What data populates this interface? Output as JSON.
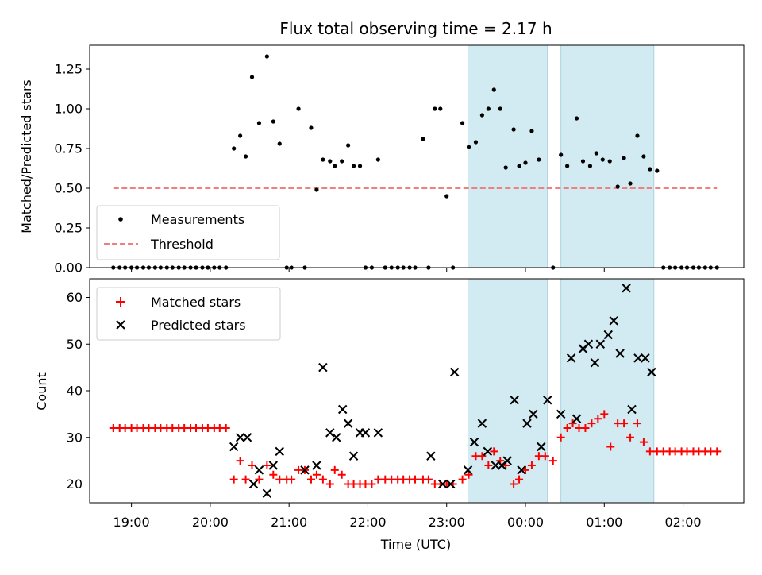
{
  "chart_data": [
    {
      "type": "scatter",
      "title": "Flux total observing time = 2.17 h",
      "xlabel": "",
      "ylabel": "Matched/Predicted stars",
      "ylim": [
        0.0,
        1.4
      ],
      "yticks": [
        "0.00",
        "0.25",
        "0.50",
        "0.75",
        "1.00",
        "1.25"
      ],
      "yticks_values": [
        0.0,
        0.25,
        0.5,
        0.75,
        1.0,
        1.25
      ],
      "xlim_hours": [
        18.47,
        26.77
      ],
      "legend": {
        "placement": "lower-left",
        "entries": [
          "Measurements",
          "Threshold"
        ]
      },
      "series": [
        {
          "name": "Measurements",
          "points": [
            [
              18.77,
              0
            ],
            [
              18.85,
              0
            ],
            [
              18.92,
              0
            ],
            [
              19.0,
              0
            ],
            [
              19.07,
              0
            ],
            [
              19.15,
              0
            ],
            [
              19.22,
              0
            ],
            [
              19.3,
              0
            ],
            [
              19.37,
              0
            ],
            [
              19.45,
              0
            ],
            [
              19.52,
              0
            ],
            [
              19.6,
              0
            ],
            [
              19.67,
              0
            ],
            [
              19.75,
              0
            ],
            [
              19.82,
              0
            ],
            [
              19.9,
              0
            ],
            [
              19.97,
              0
            ],
            [
              20.05,
              0
            ],
            [
              20.12,
              0
            ],
            [
              20.2,
              0
            ],
            [
              20.3,
              0.75
            ],
            [
              20.38,
              0.83
            ],
            [
              20.45,
              0.7
            ],
            [
              20.53,
              1.2
            ],
            [
              20.62,
              0.91
            ],
            [
              20.72,
              1.33
            ],
            [
              20.8,
              0.92
            ],
            [
              20.88,
              0.78
            ],
            [
              20.97,
              0
            ],
            [
              21.03,
              0
            ],
            [
              21.12,
              1.0
            ],
            [
              21.2,
              0
            ],
            [
              21.28,
              0.88
            ],
            [
              21.35,
              0.49
            ],
            [
              21.43,
              0.68
            ],
            [
              21.52,
              0.67
            ],
            [
              21.58,
              0.64
            ],
            [
              21.67,
              0.67
            ],
            [
              21.75,
              0.77
            ],
            [
              21.82,
              0.64
            ],
            [
              21.9,
              0.64
            ],
            [
              21.97,
              0
            ],
            [
              22.05,
              0
            ],
            [
              22.13,
              0.68
            ],
            [
              22.22,
              0
            ],
            [
              22.3,
              0
            ],
            [
              22.38,
              0
            ],
            [
              22.45,
              0
            ],
            [
              22.53,
              0
            ],
            [
              22.6,
              0
            ],
            [
              22.7,
              0.81
            ],
            [
              22.77,
              0
            ],
            [
              22.85,
              1.0
            ],
            [
              22.92,
              1.0
            ],
            [
              23.0,
              0.45
            ],
            [
              23.08,
              0
            ],
            [
              23.2,
              0.91
            ],
            [
              23.28,
              0.76
            ],
            [
              23.37,
              0.79
            ],
            [
              23.45,
              0.96
            ],
            [
              23.53,
              1.0
            ],
            [
              23.6,
              1.12
            ],
            [
              23.68,
              1.0
            ],
            [
              23.75,
              0.63
            ],
            [
              23.85,
              0.87
            ],
            [
              23.92,
              0.64
            ],
            [
              24.0,
              0.66
            ],
            [
              24.08,
              0.86
            ],
            [
              24.17,
              0.68
            ],
            [
              24.35,
              0
            ],
            [
              24.45,
              0.71
            ],
            [
              24.53,
              0.64
            ],
            [
              24.65,
              0.94
            ],
            [
              24.73,
              0.67
            ],
            [
              24.82,
              0.64
            ],
            [
              24.9,
              0.72
            ],
            [
              24.98,
              0.68
            ],
            [
              25.07,
              0.67
            ],
            [
              25.17,
              0.51
            ],
            [
              25.25,
              0.69
            ],
            [
              25.33,
              0.53
            ],
            [
              25.42,
              0.83
            ],
            [
              25.5,
              0.7
            ],
            [
              25.58,
              0.62
            ],
            [
              25.67,
              0.61
            ],
            [
              25.75,
              0
            ],
            [
              25.83,
              0
            ],
            [
              25.9,
              0
            ],
            [
              25.98,
              0
            ],
            [
              26.05,
              0
            ],
            [
              26.13,
              0
            ],
            [
              26.2,
              0
            ],
            [
              26.28,
              0
            ],
            [
              26.35,
              0
            ],
            [
              26.43,
              0
            ]
          ]
        },
        {
          "name": "Threshold",
          "type": "line",
          "x_hours": [
            18.77,
            26.43
          ],
          "y": [
            0.5,
            0.5
          ]
        }
      ],
      "shaded_intervals_hours": [
        [
          23.27,
          24.28
        ],
        [
          24.45,
          25.63
        ]
      ]
    },
    {
      "type": "scatter",
      "title": "",
      "xlabel": "Time (UTC)",
      "ylabel": "Count",
      "ylim": [
        16,
        64
      ],
      "yticks": [
        "20",
        "30",
        "40",
        "50",
        "60"
      ],
      "yticks_values": [
        20,
        30,
        40,
        50,
        60
      ],
      "xlim_hours": [
        18.47,
        26.77
      ],
      "xtick_values_hours": [
        19,
        20,
        21,
        22,
        23,
        24,
        25,
        26
      ],
      "xticks": [
        "19:00",
        "20:00",
        "21:00",
        "22:00",
        "23:00",
        "00:00",
        "01:00",
        "02:00"
      ],
      "legend": {
        "placement": "top-left",
        "entries": [
          "Matched stars",
          "Predicted stars"
        ]
      },
      "series": [
        {
          "name": "Matched stars",
          "points": [
            [
              18.77,
              32
            ],
            [
              18.85,
              32
            ],
            [
              18.92,
              32
            ],
            [
              19.0,
              32
            ],
            [
              19.07,
              32
            ],
            [
              19.15,
              32
            ],
            [
              19.22,
              32
            ],
            [
              19.3,
              32
            ],
            [
              19.37,
              32
            ],
            [
              19.45,
              32
            ],
            [
              19.52,
              32
            ],
            [
              19.6,
              32
            ],
            [
              19.67,
              32
            ],
            [
              19.75,
              32
            ],
            [
              19.82,
              32
            ],
            [
              19.9,
              32
            ],
            [
              19.97,
              32
            ],
            [
              20.05,
              32
            ],
            [
              20.12,
              32
            ],
            [
              20.2,
              32
            ],
            [
              20.3,
              21
            ],
            [
              20.38,
              25
            ],
            [
              20.45,
              21
            ],
            [
              20.53,
              24
            ],
            [
              20.62,
              21
            ],
            [
              20.72,
              24
            ],
            [
              20.8,
              22
            ],
            [
              20.88,
              21
            ],
            [
              20.97,
              21
            ],
            [
              21.03,
              21
            ],
            [
              21.12,
              23
            ],
            [
              21.2,
              23
            ],
            [
              21.28,
              21
            ],
            [
              21.35,
              22
            ],
            [
              21.43,
              21
            ],
            [
              21.52,
              20
            ],
            [
              21.58,
              23
            ],
            [
              21.67,
              22
            ],
            [
              21.75,
              20
            ],
            [
              21.82,
              20
            ],
            [
              21.9,
              20
            ],
            [
              21.97,
              20
            ],
            [
              22.05,
              20
            ],
            [
              22.13,
              21
            ],
            [
              22.22,
              21
            ],
            [
              22.3,
              21
            ],
            [
              22.38,
              21
            ],
            [
              22.45,
              21
            ],
            [
              22.53,
              21
            ],
            [
              22.6,
              21
            ],
            [
              22.7,
              21
            ],
            [
              22.77,
              21
            ],
            [
              22.85,
              20
            ],
            [
              22.92,
              20
            ],
            [
              23.0,
              20
            ],
            [
              23.08,
              20
            ],
            [
              23.2,
              21
            ],
            [
              23.28,
              22
            ],
            [
              23.37,
              26
            ],
            [
              23.45,
              26
            ],
            [
              23.53,
              24
            ],
            [
              23.6,
              27
            ],
            [
              23.68,
              25
            ],
            [
              23.75,
              24
            ],
            [
              23.85,
              20
            ],
            [
              23.92,
              21
            ],
            [
              24.0,
              23
            ],
            [
              24.08,
              24
            ],
            [
              24.17,
              26
            ],
            [
              24.25,
              26
            ],
            [
              24.35,
              25
            ],
            [
              24.45,
              30
            ],
            [
              24.53,
              32
            ],
            [
              24.6,
              33
            ],
            [
              24.68,
              32
            ],
            [
              24.76,
              32
            ],
            [
              24.84,
              33
            ],
            [
              24.92,
              34
            ],
            [
              25.0,
              35
            ],
            [
              25.08,
              28
            ],
            [
              25.17,
              33
            ],
            [
              25.25,
              33
            ],
            [
              25.33,
              30
            ],
            [
              25.42,
              33
            ],
            [
              25.5,
              29
            ],
            [
              25.58,
              27
            ],
            [
              25.67,
              27
            ],
            [
              25.75,
              27
            ],
            [
              25.83,
              27
            ],
            [
              25.9,
              27
            ],
            [
              25.98,
              27
            ],
            [
              26.05,
              27
            ],
            [
              26.13,
              27
            ],
            [
              26.2,
              27
            ],
            [
              26.28,
              27
            ],
            [
              26.35,
              27
            ],
            [
              26.43,
              27
            ]
          ]
        },
        {
          "name": "Predicted stars",
          "points": [
            [
              20.3,
              28
            ],
            [
              20.38,
              30
            ],
            [
              20.47,
              30
            ],
            [
              20.55,
              20
            ],
            [
              20.62,
              23
            ],
            [
              20.72,
              18
            ],
            [
              20.8,
              24
            ],
            [
              20.88,
              27
            ],
            [
              21.2,
              23
            ],
            [
              21.35,
              24
            ],
            [
              21.43,
              45
            ],
            [
              21.52,
              31
            ],
            [
              21.6,
              30
            ],
            [
              21.68,
              36
            ],
            [
              21.75,
              33
            ],
            [
              21.82,
              26
            ],
            [
              21.9,
              31
            ],
            [
              21.97,
              31
            ],
            [
              22.13,
              31
            ],
            [
              22.8,
              26
            ],
            [
              22.95,
              20
            ],
            [
              23.05,
              20
            ],
            [
              23.1,
              44
            ],
            [
              23.27,
              23
            ],
            [
              23.35,
              29
            ],
            [
              23.45,
              33
            ],
            [
              23.52,
              27
            ],
            [
              23.62,
              24
            ],
            [
              23.7,
              24
            ],
            [
              23.77,
              25
            ],
            [
              23.86,
              38
            ],
            [
              23.95,
              23
            ],
            [
              24.02,
              33
            ],
            [
              24.1,
              35
            ],
            [
              24.2,
              28
            ],
            [
              24.28,
              38
            ],
            [
              24.45,
              35
            ],
            [
              24.58,
              47
            ],
            [
              24.65,
              34
            ],
            [
              24.73,
              49
            ],
            [
              24.8,
              50
            ],
            [
              24.88,
              46
            ],
            [
              24.95,
              50
            ],
            [
              25.05,
              52
            ],
            [
              25.12,
              55
            ],
            [
              25.2,
              48
            ],
            [
              25.28,
              62
            ],
            [
              25.35,
              36
            ],
            [
              25.43,
              47
            ],
            [
              25.52,
              47
            ],
            [
              25.6,
              44
            ]
          ]
        }
      ],
      "shaded_intervals_hours": [
        [
          23.27,
          24.28
        ],
        [
          24.45,
          25.63
        ]
      ]
    }
  ],
  "colors": {
    "measurements": "#000000",
    "threshold": "#f08080",
    "matched": "#ff0000",
    "predicted": "#000000",
    "shade": "#add8e6"
  }
}
